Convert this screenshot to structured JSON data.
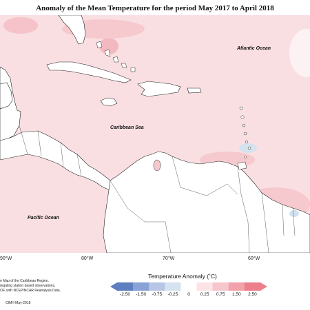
{
  "title": "Anomaly of the Mean Temperature for the period May 2017 to April 2018",
  "labels": {
    "atlantic": "Atlantic Ocean",
    "caribbean": "Caribbean Sea",
    "pacific": "Pacific Ocean"
  },
  "longitudes": [
    "90°W",
    "80°W",
    "70°W",
    "60°W"
  ],
  "credits": {
    "line1": "n Map of the Caribbean Region.",
    "line2": "regating station based observations,",
    "line3": "OF, with NCEP/NCAR Reanalysis Data."
  },
  "footer": "CIMH May-2018",
  "legend": {
    "title": "Temperature Anomaly (˚C)",
    "ticks": [
      "-2.50",
      "-1.50",
      "-0.75",
      "-0.25",
      "0",
      "0.25",
      "0.75",
      "1.50",
      "2.50"
    ],
    "colors": [
      "#5e7fbf",
      "#8aa3d6",
      "#b7c6e6",
      "#d4e3ef",
      "#ffffff",
      "#fbe3e6",
      "#f6c6cc",
      "#f1a2ab",
      "#ec7f8c"
    ]
  },
  "colors": {
    "land": "#ffffff",
    "warm_sea": "#f9dfe2",
    "warm_spot": "#f3b9c0",
    "cool_spot": "#cfe3ef"
  }
}
